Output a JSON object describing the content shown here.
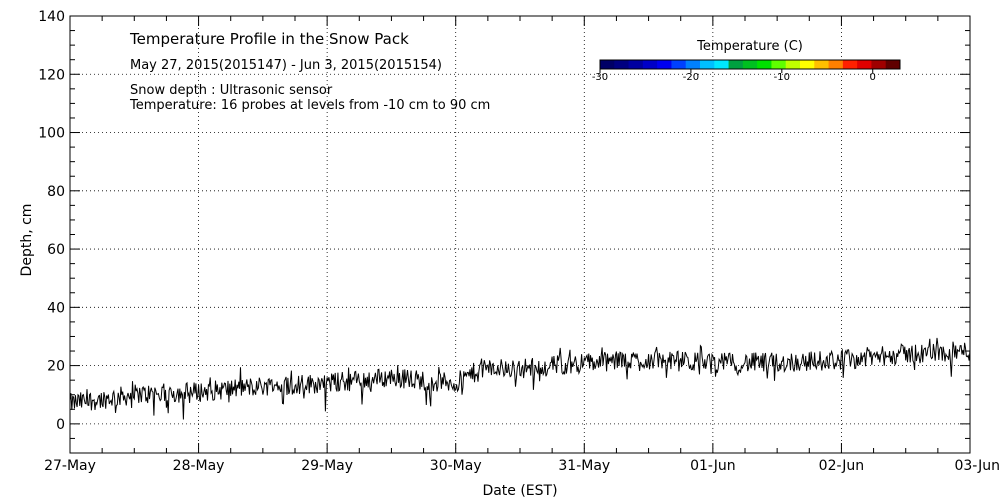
{
  "chart_data": {
    "type": "line",
    "title": "Temperature Profile in the Snow Pack",
    "subtitle": "May 27, 2015(2015147) - Jun  3, 2015(2015154)",
    "annotations": [
      "Snow depth : Ultrasonic sensor",
      "Temperature: 16 probes at levels from -10 cm to 90 cm"
    ],
    "xlabel": "Date (EST)",
    "ylabel": "Depth, cm",
    "ylim": [
      -10,
      140
    ],
    "y_ticks": [
      0,
      20,
      40,
      60,
      80,
      100,
      120,
      140
    ],
    "xlim": [
      0,
      7
    ],
    "x_tick_labels": [
      "27-May",
      "28-May",
      "29-May",
      "30-May",
      "31-May",
      "01-Jun",
      "02-Jun",
      "03-Jun"
    ],
    "grid": true,
    "colorbar": {
      "title": "Temperature (C)",
      "min": -30,
      "max": 3,
      "tick_values": [
        -30,
        -20,
        -10,
        0
      ],
      "tick_labels": [
        "-30",
        "-20",
        "-10",
        "0"
      ],
      "colors": [
        "#000066",
        "#000080",
        "#0000a0",
        "#0000c8",
        "#0000f0",
        "#0040ff",
        "#0080ff",
        "#00c0ff",
        "#00e8ff",
        "#00a040",
        "#00c020",
        "#00e000",
        "#60ff00",
        "#c0ff00",
        "#ffff00",
        "#ffc000",
        "#ff8000",
        "#ff2000",
        "#e00000",
        "#a00000",
        "#600000"
      ]
    },
    "series": [
      {
        "name": "Snow depth",
        "color": "#000000",
        "day_means": [
          [
            0.0,
            7
          ],
          [
            0.5,
            10
          ],
          [
            1.0,
            11
          ],
          [
            1.5,
            13
          ],
          [
            2.0,
            14
          ],
          [
            2.5,
            16
          ],
          [
            3.0,
            14
          ],
          [
            3.2,
            19
          ],
          [
            3.5,
            19
          ],
          [
            4.0,
            21
          ],
          [
            4.5,
            22
          ],
          [
            5.0,
            21
          ],
          [
            5.5,
            21
          ],
          [
            6.0,
            22
          ],
          [
            6.5,
            24
          ],
          [
            7.0,
            25
          ]
        ],
        "noise_amplitude": 3.5
      }
    ]
  }
}
